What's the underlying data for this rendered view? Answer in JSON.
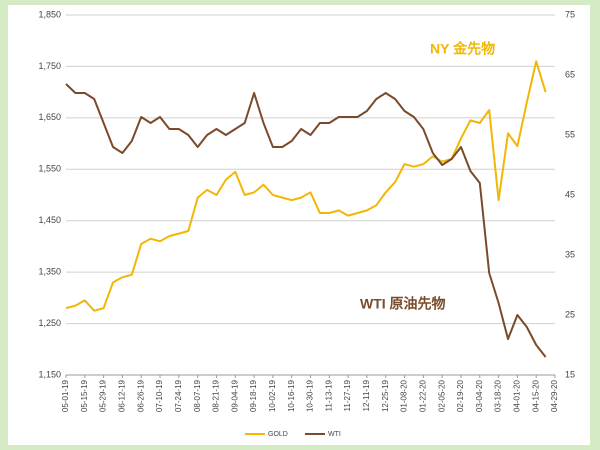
{
  "chart_data": {
    "type": "line",
    "annotations": [
      "NY 金先物",
      "WTI 原油先物"
    ],
    "categories": [
      "05-01-19",
      null,
      "05-15-19",
      null,
      "05-29-19",
      null,
      "06-12-19",
      null,
      "06-26-19",
      null,
      "07-10-19",
      null,
      "07-24-19",
      null,
      "08-07-19",
      null,
      "08-21-19",
      null,
      "09-04-19",
      null,
      "09-18-19",
      null,
      "10-02-19",
      null,
      "10-16-19",
      null,
      "10-30-19",
      null,
      "11-13-19",
      null,
      "11-27-19",
      null,
      "12-11-19",
      null,
      "12-25-19",
      null,
      "01-08-20",
      null,
      "01-22-20",
      null,
      "02-05-20",
      null,
      "02-19-20",
      null,
      "03-04-20",
      null,
      "03-18-20",
      null,
      "04-01-20",
      null,
      "04-15-20",
      null,
      "04-29-20"
    ],
    "series": [
      {
        "name": "GOLD",
        "color": "#f2b705",
        "axis": "y",
        "values": [
          1280,
          1285,
          1295,
          1275,
          1280,
          1330,
          1340,
          1345,
          1405,
          1415,
          1410,
          1420,
          1425,
          1430,
          1495,
          1510,
          1500,
          1530,
          1545,
          1500,
          1505,
          1520,
          1500,
          1495,
          1490,
          1495,
          1505,
          1465,
          1465,
          1470,
          1460,
          1465,
          1470,
          1480,
          1505,
          1525,
          1560,
          1555,
          1560,
          1575,
          1565,
          1570,
          1610,
          1645,
          1640,
          1665,
          1490,
          1620,
          1595,
          1680,
          1760,
          1700,
          null
        ]
      },
      {
        "name": "WTI",
        "color": "#7a4a2a",
        "axis": "y2",
        "values": [
          63.5,
          62,
          62,
          61,
          57,
          53,
          52,
          54,
          58,
          57,
          58,
          56,
          56,
          55,
          53,
          55,
          56,
          55,
          56,
          57,
          62,
          57,
          53,
          53,
          54,
          56,
          55,
          57,
          57,
          58,
          58,
          58,
          59,
          61,
          62,
          61,
          59,
          58,
          56,
          52,
          50,
          51,
          53,
          49,
          47,
          32,
          27,
          21,
          25,
          23,
          20,
          18,
          null
        ]
      }
    ],
    "ylim": [
      1150,
      1850
    ],
    "yticks": [
      {
        "value": 1150,
        "label": "1,150"
      },
      {
        "value": 1250,
        "label": "1,250"
      },
      {
        "value": 1350,
        "label": "1,350"
      },
      {
        "value": 1450,
        "label": "1,450"
      },
      {
        "value": 1550,
        "label": "1,550"
      },
      {
        "value": 1650,
        "label": "1,650"
      },
      {
        "value": 1750,
        "label": "1,750"
      },
      {
        "value": 1850,
        "label": "1,850"
      }
    ],
    "y2lim": [
      15,
      75
    ],
    "y2ticks": [
      15,
      25,
      35,
      45,
      55,
      65,
      75
    ],
    "grid": true,
    "legend": "bottom"
  }
}
